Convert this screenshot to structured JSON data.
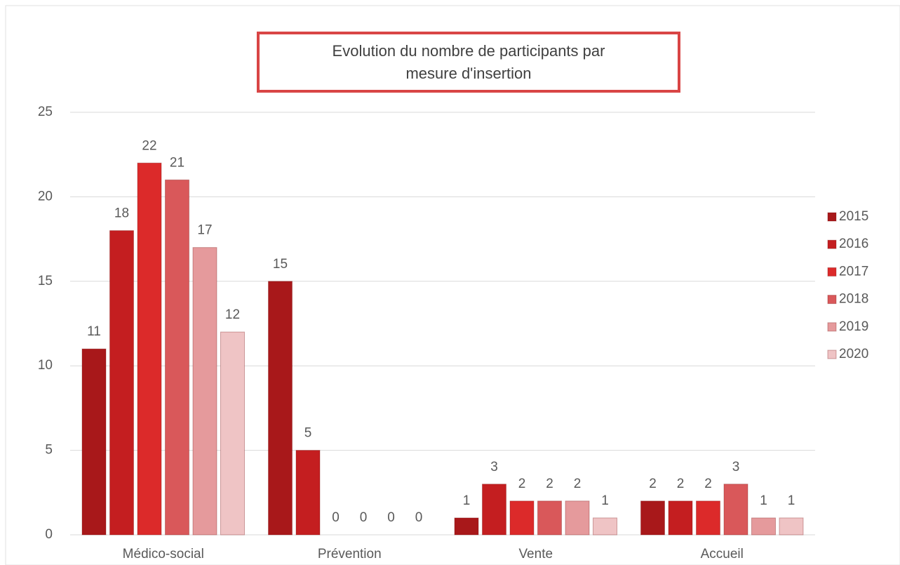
{
  "chart_data": {
    "type": "bar",
    "title": "Evolution du nombre de participants par mesure d'insertion",
    "categories": [
      "Médico-social",
      "Prévention",
      "Vente",
      "Accueil"
    ],
    "series": [
      {
        "name": "2015",
        "color": "#a8181a",
        "values": [
          11,
          15,
          1,
          2
        ]
      },
      {
        "name": "2016",
        "color": "#c41e20",
        "values": [
          18,
          5,
          3,
          2
        ]
      },
      {
        "name": "2017",
        "color": "#dc2a2a",
        "values": [
          22,
          0,
          2,
          2
        ]
      },
      {
        "name": "2018",
        "color": "#d9585a",
        "values": [
          21,
          0,
          2,
          3
        ]
      },
      {
        "name": "2019",
        "color": "#e59a9c",
        "values": [
          17,
          0,
          2,
          1
        ]
      },
      {
        "name": "2020",
        "color": "#efc4c5",
        "values": [
          12,
          0,
          1,
          1
        ]
      }
    ],
    "ylim": [
      0,
      25
    ],
    "yticks": [
      0,
      5,
      10,
      15,
      20,
      25
    ],
    "grid": true,
    "legend": "right"
  }
}
